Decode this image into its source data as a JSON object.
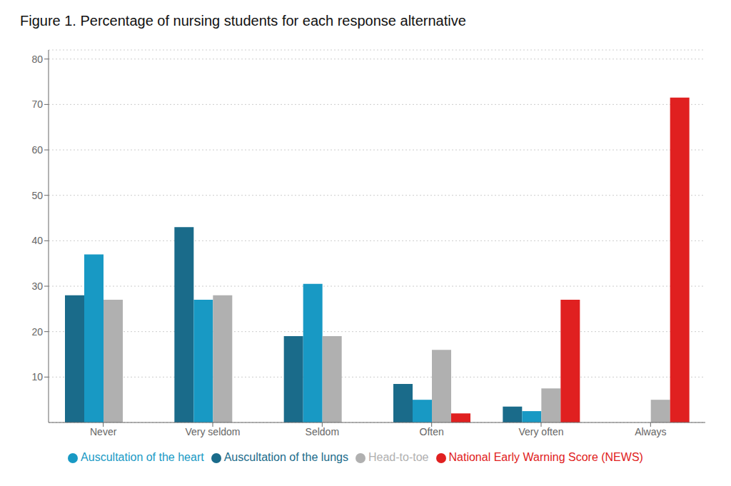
{
  "chart_data": {
    "type": "bar",
    "title": "Figure 1. Percentage of nursing students for each response alternative",
    "categories": [
      "Never",
      "Very seldom",
      "Seldom",
      "Often",
      "Very often",
      "Always"
    ],
    "series": [
      {
        "name": "Auscultation of the lungs",
        "color": "#1a6b8a",
        "values": [
          28,
          43,
          19,
          8.5,
          3.5,
          0
        ]
      },
      {
        "name": "Auscultation of the heart",
        "color": "#1899c4",
        "values": [
          37,
          27,
          30.5,
          5,
          2.5,
          0
        ]
      },
      {
        "name": "Head-to-toe",
        "color": "#b0b0b0",
        "values": [
          27,
          28,
          19,
          16,
          7.5,
          5
        ]
      },
      {
        "name": "National Early Warning Score (NEWS)",
        "color": "#e02020",
        "values": [
          0,
          0,
          0,
          2,
          27,
          71.5
        ]
      }
    ],
    "ylim": [
      0,
      82
    ],
    "yticks": [
      10,
      20,
      30,
      40,
      50,
      60,
      70,
      80
    ],
    "grid": true,
    "legend": "bottom"
  }
}
